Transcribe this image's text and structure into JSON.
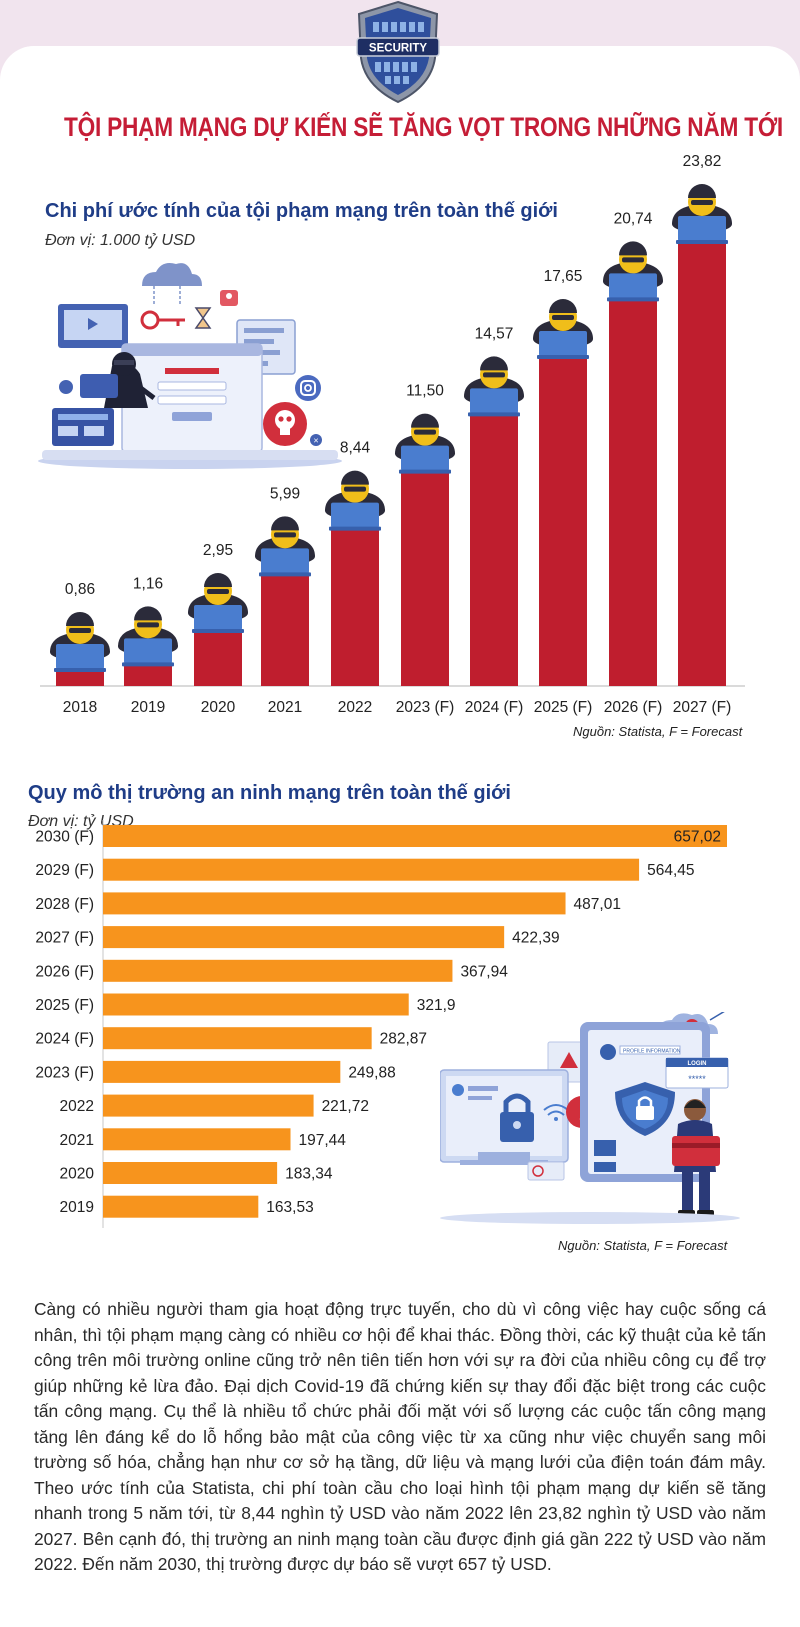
{
  "header": {
    "badge_text": "SECURITY",
    "title": "TỘI PHẠM MẠNG DỰ KIẾN SẼ TĂNG VỌT TRONG NHỮNG NĂM TỚI"
  },
  "colors": {
    "title_red": "#c51d36",
    "heading_blue": "#1f3d87",
    "bar_red": "#bf1e2e",
    "bar_orange": "#f7941d",
    "background_pink": "#f1e4ee"
  },
  "chart1": {
    "title": "Chi phí ước tính của tội phạm mạng trên toàn thế giới",
    "unit": "Đơn vị: 1.000 tỷ USD",
    "source": "Nguồn: Statista, F = Forecast"
  },
  "chart2": {
    "title": "Quy mô thị trường an ninh mạng trên toàn thế giới",
    "unit": "Đơn vị: tỷ USD",
    "source": "Nguồn: Statista, F = Forecast"
  },
  "chart_data": [
    {
      "type": "bar",
      "orientation": "vertical",
      "title": "Chi phí ước tính của tội phạm mạng trên toàn thế giới",
      "unit": "Đơn vị: 1.000 tỷ USD",
      "categories": [
        "2018",
        "2019",
        "2020",
        "2021",
        "2022",
        "2023 (F)",
        "2024 (F)",
        "2025 (F)",
        "2026 (F)",
        "2027 (F)"
      ],
      "values": [
        0.86,
        1.16,
        2.95,
        5.99,
        8.44,
        11.5,
        14.57,
        17.65,
        20.74,
        23.82
      ],
      "value_labels": [
        "0,86",
        "1,16",
        "2,95",
        "5,99",
        "8,44",
        "11,50",
        "14,57",
        "17,65",
        "20,74",
        "23,82"
      ],
      "color": "#bf1e2e",
      "grid": false,
      "source": "Nguồn: Statista, F = Forecast"
    },
    {
      "type": "bar",
      "orientation": "horizontal",
      "title": "Quy mô thị trường an ninh mạng trên toàn thế giới",
      "unit": "Đơn vị: tỷ USD",
      "categories": [
        "2030 (F)",
        "2029 (F)",
        "2028 (F)",
        "2027 (F)",
        "2026 (F)",
        "2025 (F)",
        "2024 (F)",
        "2023 (F)",
        "2022",
        "2021",
        "2020",
        "2019"
      ],
      "values": [
        657.02,
        564.45,
        487.01,
        422.39,
        367.94,
        321.9,
        282.87,
        249.88,
        221.72,
        197.44,
        183.34,
        163.53
      ],
      "value_labels": [
        "657,02",
        "564,45",
        "487,01",
        "422,39",
        "367,94",
        "321,9",
        "282,87",
        "249,88",
        "221,72",
        "197,44",
        "183,34",
        "163,53"
      ],
      "color": "#f7941d",
      "grid": false,
      "source": "Nguồn: Statista, F = Forecast"
    }
  ],
  "illustrations": {
    "left_illustration": "hacker-laptop-illustration",
    "right_illustration": "cybersecurity-shield-illustration",
    "login_label": "LOGIN",
    "login_password": "*****",
    "profile_label": "PROFILE INFORMATION"
  },
  "body_text": "Càng có nhiều người tham gia hoạt động trực tuyến, cho dù vì công việc hay cuộc sống cá nhân, thì tội phạm mạng càng có nhiều cơ hội để khai thác. Đồng thời, các kỹ thuật của kẻ tấn công trên môi trường online cũng trở nên tiên tiến hơn với sự ra đời của nhiều công cụ để trợ giúp những kẻ lừa đảo. Đại dịch Covid-19 đã chứng kiến sự thay đổi đặc biệt trong các cuộc tấn công mạng. Cụ thể là nhiều tổ chức phải đối mặt với số lượng các cuộc tấn công mạng tăng lên đáng kể do lỗ hổng bảo mật của công việc từ xa cũng như việc chuyển sang môi trường số hóa, chẳng hạn như cơ sở hạ tầng, dữ liệu và mạng lưới của điện toán đám mây. Theo ước tính của Statista, chi phí toàn cầu cho loại hình tội phạm mạng dự kiến sẽ tăng nhanh trong 5 năm tới, từ 8,44 nghìn tỷ USD vào năm 2022 lên 23,82 nghìn tỷ USD vào năm 2027. Bên cạnh đó, thị trường an ninh mạng toàn cầu được định giá gần 222 tỷ USD vào năm 2022. Đến năm 2030, thị trường được dự báo sẽ vượt 657 tỷ USD."
}
